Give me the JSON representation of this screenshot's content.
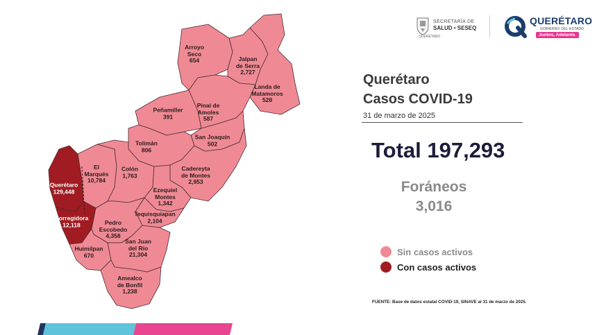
{
  "header": {
    "secretaria_line": "SECRETARÍA DE",
    "salud_line": "SALUD • SESEQ",
    "seal_caption": "QUERÉTARO",
    "brand_name": "QUERÉTARO",
    "brand_sub": "GOBIERNO DEL ESTADO",
    "brand_slogan": "Juntos, Adelante."
  },
  "title": {
    "line1": "Querétaro",
    "line2": "Casos COVID-19"
  },
  "date": "31 de marzo de 2025",
  "total": "Total 197,293",
  "foraneos": {
    "label": "Foráneos",
    "value": "3,016"
  },
  "legend": [
    {
      "label": "Sin casos activos",
      "color": "#ef8a95",
      "text_color": "#8a8a8a"
    },
    {
      "label": "Con casos activos",
      "color": "#a01c22",
      "text_color": "#1e1e1e"
    }
  ],
  "source": "FUENTE:  Base de datos estatal  COVID-19,  SINAVE  al 31 de marzo de 2025.",
  "colors": {
    "sin_casos": "#ef8a95",
    "con_casos": "#a01c22",
    "border": "#4a2a30",
    "stripe_blue": "#5fc3dc",
    "stripe_pink": "#e84690",
    "stripe_navy": "#1f3560"
  },
  "municipios": [
    {
      "id": "arroyo-seco",
      "name_lines": [
        "Arroyo",
        "Seco"
      ],
      "cases": "654",
      "status": "sin"
    },
    {
      "id": "jalpan",
      "name_lines": [
        "Jalpan",
        "de Serra"
      ],
      "cases": "2,727",
      "status": "sin"
    },
    {
      "id": "landa",
      "name_lines": [
        "Landa de",
        "Matamoros"
      ],
      "cases": "528",
      "status": "sin"
    },
    {
      "id": "pinal",
      "name_lines": [
        "Pinal de",
        "Amoles"
      ],
      "cases": "587",
      "status": "sin"
    },
    {
      "id": "penamiller",
      "name_lines": [
        "Peñamiller"
      ],
      "cases": "391",
      "status": "sin"
    },
    {
      "id": "san-joaquin",
      "name_lines": [
        "San Joaquín"
      ],
      "cases": "502",
      "status": "sin"
    },
    {
      "id": "toliman",
      "name_lines": [
        "Tolimán"
      ],
      "cases": "806",
      "status": "sin"
    },
    {
      "id": "el-marques",
      "name_lines": [
        "El",
        "Marqués"
      ],
      "cases": "10,784",
      "status": "sin"
    },
    {
      "id": "colon",
      "name_lines": [
        "Colón"
      ],
      "cases": "1,763",
      "status": "sin"
    },
    {
      "id": "cadereyta",
      "name_lines": [
        "Cadereyta",
        "de Montes"
      ],
      "cases": "2,953",
      "status": "sin"
    },
    {
      "id": "queretaro",
      "name_lines": [
        "Querétaro"
      ],
      "cases": "129,448",
      "status": "con"
    },
    {
      "id": "ezequiel",
      "name_lines": [
        "Ezequiel",
        "Montes"
      ],
      "cases": "1,342",
      "status": "sin"
    },
    {
      "id": "tequisquiapan",
      "name_lines": [
        "Tequisquiapan"
      ],
      "cases": "2,104",
      "status": "sin"
    },
    {
      "id": "corregidora",
      "name_lines": [
        "Corregidora"
      ],
      "cases": "12,118",
      "status": "con"
    },
    {
      "id": "pedro-escobedo",
      "name_lines": [
        "Pedro",
        "Escobedo"
      ],
      "cases": "4,358",
      "status": "sin"
    },
    {
      "id": "huimilpan",
      "name_lines": [
        "Huimilpan"
      ],
      "cases": "670",
      "status": "sin"
    },
    {
      "id": "san-juan",
      "name_lines": [
        "San Juan",
        "del Río"
      ],
      "cases": "21,304",
      "status": "sin"
    },
    {
      "id": "amealco",
      "name_lines": [
        "Amealco",
        "de Bonfil"
      ],
      "cases": "1,238",
      "status": "sin"
    }
  ]
}
